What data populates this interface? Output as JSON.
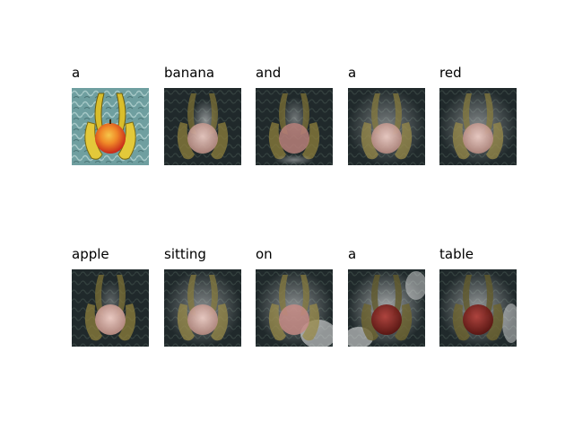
{
  "words": [
    "a",
    "banana",
    "and",
    "a",
    "red",
    "apple",
    "sitting",
    "on",
    "a",
    "table"
  ],
  "colors": {
    "background_teal": "#6f9fa0",
    "dark_background": "#1f2a2d",
    "banana_yellow": "#d8c23a",
    "apple_red": "#d8361f",
    "apple_orange": "#f2a22a"
  }
}
